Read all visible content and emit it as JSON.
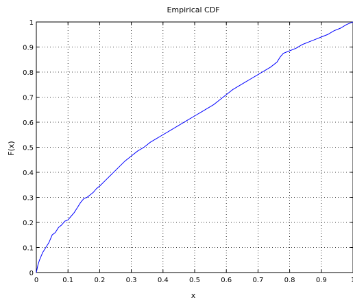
{
  "chart_data": {
    "type": "line",
    "title": "Empirical CDF",
    "xlabel": "x",
    "ylabel": "F(x)",
    "xlim": [
      0,
      1
    ],
    "ylim": [
      0,
      1
    ],
    "grid": true,
    "line_color": "#0000ff",
    "xticks": [
      0,
      0.1,
      0.2,
      0.3,
      0.4,
      0.5,
      0.6,
      0.7,
      0.8,
      0.9,
      1
    ],
    "xtick_labels": [
      "0",
      "0.1",
      "0.2",
      "0.3",
      "0.4",
      "0.5",
      "0.6",
      "0.7",
      "0.8",
      "0.9",
      "1"
    ],
    "yticks": [
      0,
      0.1,
      0.2,
      0.3,
      0.4,
      0.5,
      0.6,
      0.7,
      0.8,
      0.9,
      1
    ],
    "ytick_labels": [
      "0",
      "0.1",
      "0.2",
      "0.3",
      "0.4",
      "0.5",
      "0.6",
      "0.7",
      "0.8",
      "0.9",
      "1"
    ],
    "series": [
      {
        "x": [
          0,
          0.005,
          0.01,
          0.02,
          0.03,
          0.04,
          0.05,
          0.06,
          0.07,
          0.08,
          0.09,
          0.1,
          0.11,
          0.12,
          0.13,
          0.14,
          0.15,
          0.16,
          0.17,
          0.18,
          0.19,
          0.2,
          0.22,
          0.24,
          0.26,
          0.28,
          0.3,
          0.32,
          0.34,
          0.36,
          0.38,
          0.4,
          0.42,
          0.44,
          0.46,
          0.48,
          0.5,
          0.52,
          0.54,
          0.56,
          0.58,
          0.6,
          0.62,
          0.64,
          0.66,
          0.68,
          0.7,
          0.72,
          0.74,
          0.76,
          0.77,
          0.78,
          0.8,
          0.82,
          0.84,
          0.86,
          0.88,
          0.9,
          0.92,
          0.94,
          0.96,
          0.98,
          1.0
        ],
        "y": [
          0,
          0.03,
          0.05,
          0.08,
          0.1,
          0.12,
          0.15,
          0.16,
          0.18,
          0.19,
          0.205,
          0.21,
          0.225,
          0.24,
          0.26,
          0.28,
          0.295,
          0.3,
          0.31,
          0.32,
          0.335,
          0.345,
          0.37,
          0.395,
          0.42,
          0.445,
          0.465,
          0.485,
          0.5,
          0.52,
          0.535,
          0.55,
          0.565,
          0.58,
          0.595,
          0.61,
          0.625,
          0.64,
          0.655,
          0.67,
          0.69,
          0.71,
          0.73,
          0.745,
          0.76,
          0.775,
          0.79,
          0.805,
          0.82,
          0.84,
          0.86,
          0.875,
          0.885,
          0.895,
          0.91,
          0.92,
          0.93,
          0.94,
          0.95,
          0.965,
          0.975,
          0.99,
          1.0
        ]
      }
    ]
  }
}
